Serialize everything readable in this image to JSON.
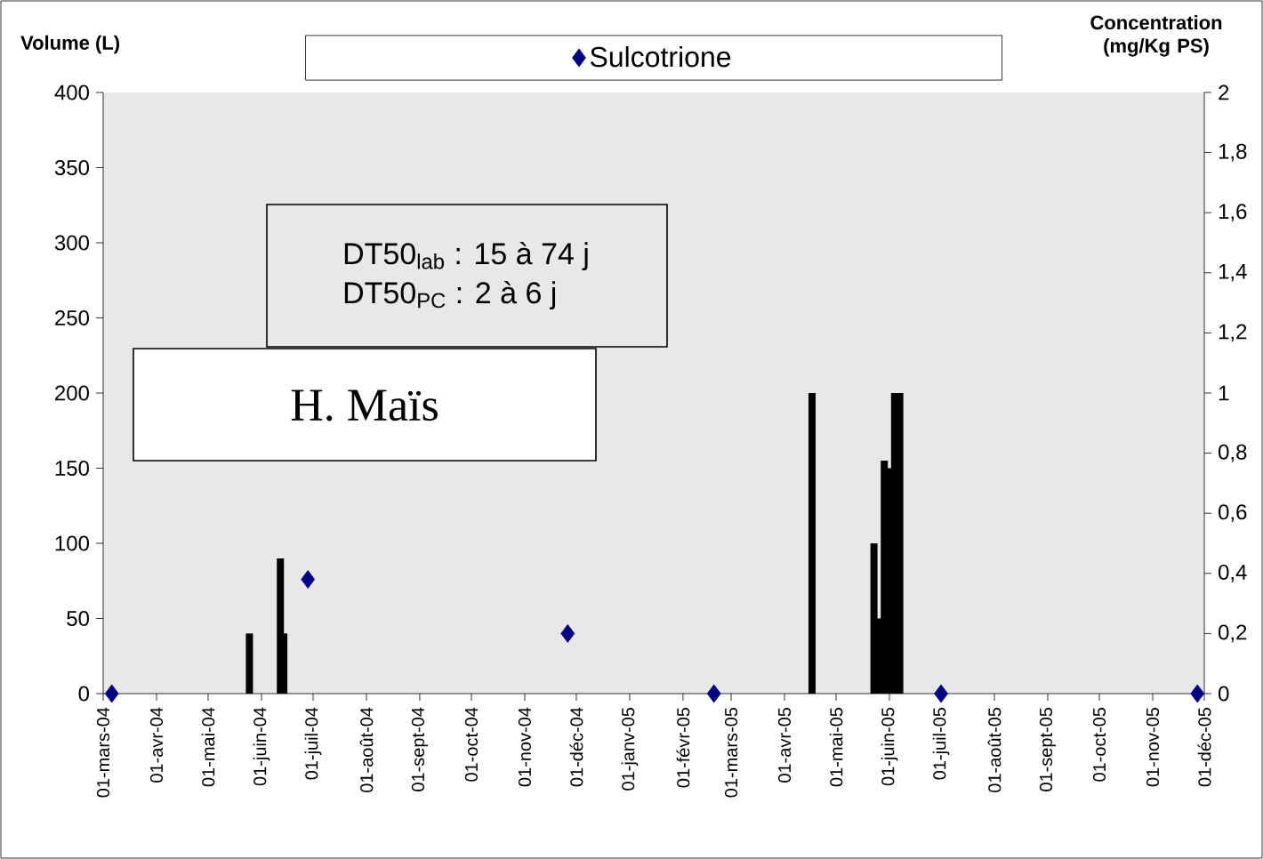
{
  "chart_data": {
    "type": "bar",
    "ylabel": "Volume (L)",
    "y2label": "Concentration (mg/Kg PS)",
    "annotations": [
      "DT50$_{lab}$ : 15 à 74 j",
      "DT50$_{PC}$ : 2 à 6 j",
      "H. Maïs"
    ],
    "xlim": [
      "2004-03-01",
      "2005-12-01"
    ],
    "xticks": [
      {
        "value": "2004-03-01",
        "label": "01-mars-04"
      },
      {
        "value": "2004-04-01",
        "label": "01-avr-04"
      },
      {
        "value": "2004-05-01",
        "label": "01-mai-04"
      },
      {
        "value": "2004-06-01",
        "label": "01-juin-04"
      },
      {
        "value": "2004-07-01",
        "label": "01-juil-04"
      },
      {
        "value": "2004-08-01",
        "label": "01-août-04"
      },
      {
        "value": "2004-09-01",
        "label": "01-sept-04"
      },
      {
        "value": "2004-10-01",
        "label": "01-oct-04"
      },
      {
        "value": "2004-11-01",
        "label": "01-nov-04"
      },
      {
        "value": "2004-12-01",
        "label": "01-déc-04"
      },
      {
        "value": "2005-01-01",
        "label": "01-janv-05"
      },
      {
        "value": "2005-02-01",
        "label": "01-févr-05"
      },
      {
        "value": "2005-03-01",
        "label": "01-mars-05"
      },
      {
        "value": "2005-04-01",
        "label": "01-avr-05"
      },
      {
        "value": "2005-05-01",
        "label": "01-mai-05"
      },
      {
        "value": "2005-06-01",
        "label": "01-juin-05"
      },
      {
        "value": "2005-07-01",
        "label": "01-juil-05"
      },
      {
        "value": "2005-08-01",
        "label": "01-août-05"
      },
      {
        "value": "2005-09-01",
        "label": "01-sept-05"
      },
      {
        "value": "2005-10-01",
        "label": "01-oct-05"
      },
      {
        "value": "2005-11-01",
        "label": "01-nov-05"
      },
      {
        "value": "2005-12-01",
        "label": "01-déc-05"
      }
    ],
    "ylim": [
      0,
      400
    ],
    "yticks": [
      0,
      50,
      100,
      150,
      200,
      250,
      300,
      350,
      400
    ],
    "y2lim": [
      0,
      2
    ],
    "y2ticks": [
      0,
      {
        "value": 0.2,
        "label": "0,2"
      },
      {
        "value": 0.4,
        "label": "0,4"
      },
      {
        "value": 0.6,
        "label": "0,6"
      },
      {
        "value": 0.8,
        "label": "0,8"
      },
      1,
      {
        "value": 1.2,
        "label": "1,2"
      },
      {
        "value": 1.4,
        "label": "1,4"
      },
      {
        "value": 1.6,
        "label": "1,6"
      },
      {
        "value": 1.8,
        "label": "1,8"
      },
      2
    ],
    "legend": "top",
    "grid": false,
    "series": [
      {
        "color": "#000000",
        "x": [
          "2004-05-25",
          "2004-06-12",
          "2004-06-14",
          "2005-04-17",
          "2005-05-23",
          "2005-05-26",
          "2005-05-29",
          "2005-06-01",
          "2005-06-04",
          "2005-06-07"
        ],
        "values": [
          40,
          90,
          40,
          200,
          100,
          50,
          155,
          150,
          200,
          200
        ]
      },
      {
        "type": "scatter",
        "name": "Sulcotrione",
        "axis": "y2",
        "marker": "diamond",
        "color": "#000080",
        "x": [
          "2004-03-06",
          "2004-06-28",
          "2004-11-26",
          "2005-02-19",
          "2005-07-01",
          "2005-11-27"
        ],
        "values": [
          0,
          0.38,
          0.2,
          0,
          0,
          0
        ]
      }
    ]
  }
}
